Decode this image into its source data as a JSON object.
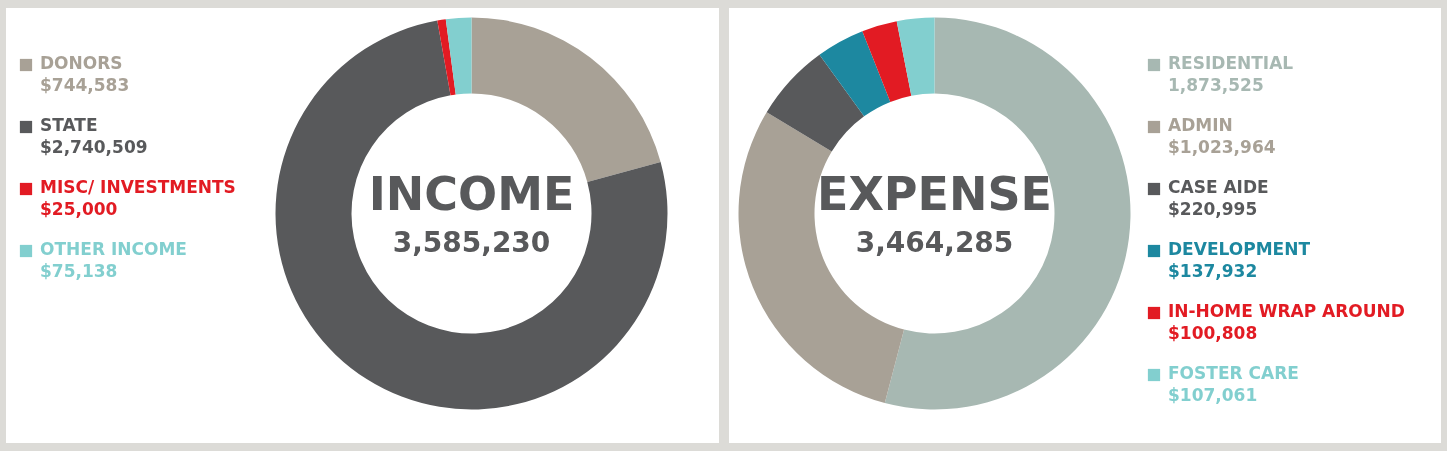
{
  "chart_data": [
    {
      "type": "donut",
      "title": "INCOME",
      "subtitle": "3,585,230",
      "legend": "left",
      "categories": [
        "DONORS",
        "STATE",
        "MISC/ INVESTMENTS",
        "OTHER INCOME"
      ],
      "values": [
        744583,
        2740509,
        25000,
        75138
      ],
      "value_labels": [
        "$744,583",
        "$2,740,509",
        "$25,000",
        "$75,138"
      ],
      "colors": [
        "#a8a196",
        "#58595b",
        "#e21b23",
        "#82cfcf"
      ]
    },
    {
      "type": "donut",
      "title": "EXPENSE",
      "subtitle": "3,464,285",
      "legend": "right",
      "categories": [
        "RESIDENTIAL",
        "ADMIN",
        "CASE AIDE",
        "DEVELOPMENT",
        "IN-HOME WRAP AROUND",
        "FOSTER CARE"
      ],
      "values": [
        1873525,
        1023964,
        220995,
        137932,
        100808,
        107061
      ],
      "value_labels": [
        "1,873,525",
        "$1,023,964",
        "$220,995",
        "$137,932",
        "$100,808",
        "$107,061"
      ],
      "colors": [
        "#a7b8b2",
        "#a8a196",
        "#58595b",
        "#1d88a0",
        "#e21b23",
        "#82cfcf"
      ]
    }
  ]
}
